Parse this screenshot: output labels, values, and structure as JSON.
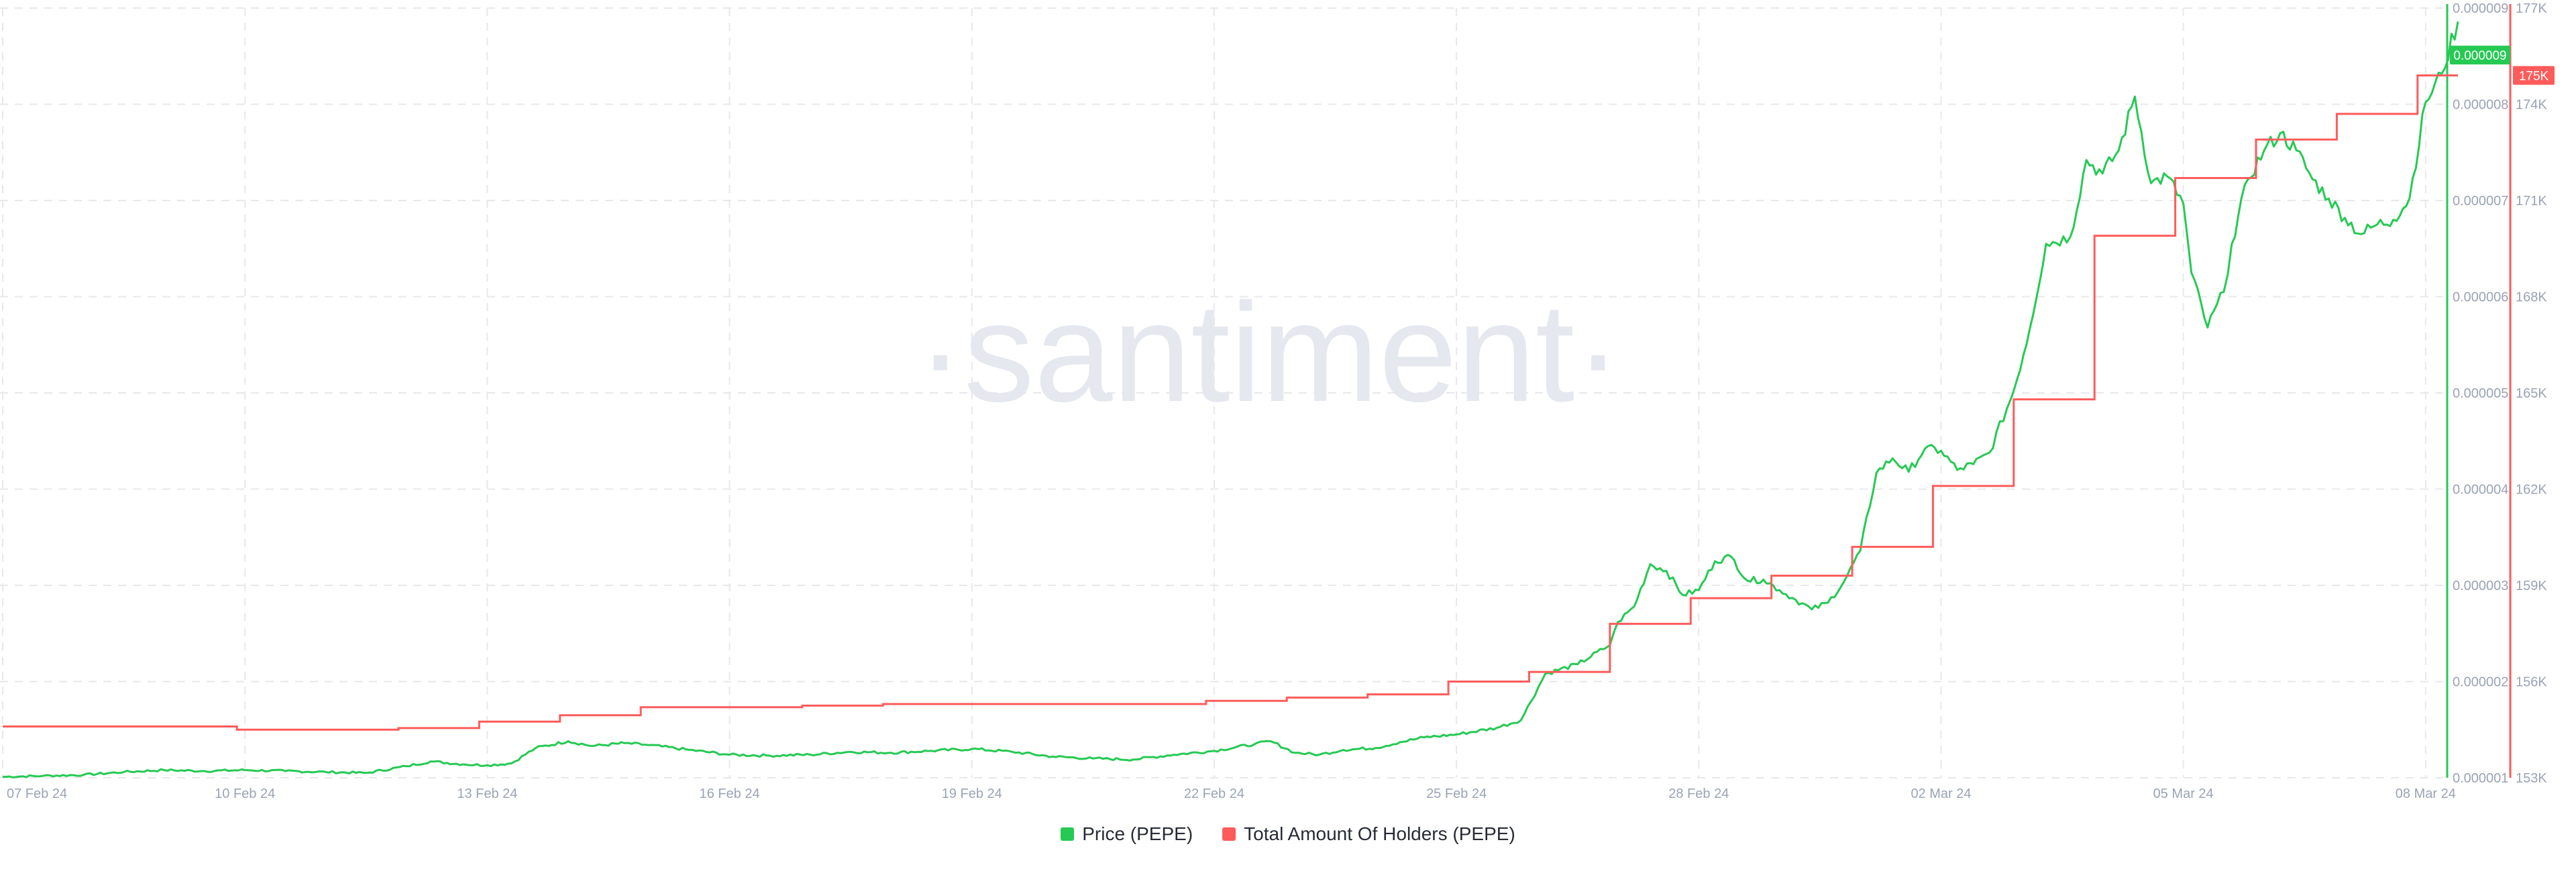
{
  "watermark": "·santiment·",
  "colors": {
    "price": "#26c953",
    "holders": "#ff5b5b",
    "grid": "#e8e8ec",
    "axis_text": "#9aa3b5",
    "watermark": "#e6e8f0"
  },
  "chart_data": {
    "type": "line",
    "title": "",
    "x_tick_labels": [
      "07 Feb 24",
      "10 Feb 24",
      "13 Feb 24",
      "16 Feb 24",
      "19 Feb 24",
      "22 Feb 24",
      "25 Feb 24",
      "28 Feb 24",
      "02 Mar 24",
      "05 Mar 24",
      "08 Mar 24"
    ],
    "x_tick_day_index": [
      0,
      3,
      6,
      9,
      12,
      15,
      18,
      21,
      24,
      27,
      30
    ],
    "x_range_days": [
      0,
      30.4
    ],
    "y_left": {
      "series": "Price (PEPE)",
      "range": [
        1e-06,
        9e-06
      ],
      "tick_labels": [
        "0.000001",
        "0.000002",
        "0.000003",
        "0.000004",
        "0.000005",
        "0.000006",
        "0.000007",
        "0.000008",
        "0.000009"
      ],
      "ticks": [
        1e-06,
        2e-06,
        3e-06,
        4e-06,
        5e-06,
        6e-06,
        7e-06,
        8e-06,
        9e-06
      ],
      "last_value_label": "0.000009"
    },
    "y_right": {
      "series": "Total Amount Of Holders (PEPE)",
      "range": [
        153000,
        177000
      ],
      "tick_labels": [
        "153K",
        "156K",
        "159K",
        "162K",
        "165K",
        "168K",
        "171K",
        "174K",
        "177K"
      ],
      "ticks": [
        153000,
        156000,
        159000,
        162000,
        165000,
        168000,
        171000,
        174000,
        177000
      ],
      "last_value_label": "175K"
    },
    "grid": true,
    "legend_position": "bottom-center",
    "series": [
      {
        "name": "Price (PEPE)",
        "axis": "left",
        "color": "#26c953",
        "points": [
          [
            0,
            1.01e-06
          ],
          [
            0.5,
            1.02e-06
          ],
          [
            1,
            1.03e-06
          ],
          [
            1.5,
            1.06e-06
          ],
          [
            2,
            1.08e-06
          ],
          [
            2.5,
            1.07e-06
          ],
          [
            3,
            1.08e-06
          ],
          [
            3.5,
            1.07e-06
          ],
          [
            4,
            1.06e-06
          ],
          [
            4.5,
            1.05e-06
          ],
          [
            5,
            1.12e-06
          ],
          [
            5.3,
            1.17e-06
          ],
          [
            5.7,
            1.14e-06
          ],
          [
            6,
            1.13e-06
          ],
          [
            6.3,
            1.15e-06
          ],
          [
            6.6,
            1.31e-06
          ],
          [
            7,
            1.38e-06
          ],
          [
            7.3,
            1.33e-06
          ],
          [
            7.7,
            1.36e-06
          ],
          [
            8,
            1.34e-06
          ],
          [
            8.5,
            1.29e-06
          ],
          [
            9,
            1.24e-06
          ],
          [
            9.5,
            1.23e-06
          ],
          [
            10,
            1.24e-06
          ],
          [
            10.5,
            1.27e-06
          ],
          [
            11,
            1.26e-06
          ],
          [
            11.5,
            1.28e-06
          ],
          [
            12,
            1.3e-06
          ],
          [
            12.5,
            1.27e-06
          ],
          [
            13,
            1.22e-06
          ],
          [
            13.5,
            1.2e-06
          ],
          [
            14,
            1.19e-06
          ],
          [
            14.5,
            1.24e-06
          ],
          [
            15,
            1.28e-06
          ],
          [
            15.5,
            1.35e-06
          ],
          [
            15.7,
            1.38e-06
          ],
          [
            16,
            1.26e-06
          ],
          [
            16.3,
            1.24e-06
          ],
          [
            16.6,
            1.29e-06
          ],
          [
            17,
            1.31e-06
          ],
          [
            17.3,
            1.37e-06
          ],
          [
            17.6,
            1.42e-06
          ],
          [
            18,
            1.45e-06
          ],
          [
            18.5,
            1.52e-06
          ],
          [
            18.8,
            1.6e-06
          ],
          [
            19.1,
            2.08e-06
          ],
          [
            19.5,
            2.18e-06
          ],
          [
            19.9,
            2.38e-06
          ],
          [
            20,
            2.62e-06
          ],
          [
            20.2,
            2.78e-06
          ],
          [
            20.4,
            3.22e-06
          ],
          [
            20.6,
            3.15e-06
          ],
          [
            20.8,
            2.9e-06
          ],
          [
            21,
            2.95e-06
          ],
          [
            21.2,
            3.25e-06
          ],
          [
            21.4,
            3.3e-06
          ],
          [
            21.6,
            3.05e-06
          ],
          [
            21.8,
            3.06e-06
          ],
          [
            22,
            2.95e-06
          ],
          [
            22.2,
            2.85e-06
          ],
          [
            22.4,
            2.75e-06
          ],
          [
            22.6,
            2.82e-06
          ],
          [
            22.8,
            3.04e-06
          ],
          [
            23,
            3.36e-06
          ],
          [
            23.2,
            4.17e-06
          ],
          [
            23.4,
            4.32e-06
          ],
          [
            23.6,
            4.18e-06
          ],
          [
            23.8,
            4.42e-06
          ],
          [
            24,
            4.4e-06
          ],
          [
            24.2,
            4.2e-06
          ],
          [
            24.4,
            4.26e-06
          ],
          [
            24.6,
            4.38e-06
          ],
          [
            24.9,
            5.02e-06
          ],
          [
            25.1,
            5.67e-06
          ],
          [
            25.3,
            6.55e-06
          ],
          [
            25.6,
            6.62e-06
          ],
          [
            25.8,
            7.42e-06
          ],
          [
            26,
            7.28e-06
          ],
          [
            26.2,
            7.52e-06
          ],
          [
            26.4,
            8.08e-06
          ],
          [
            26.6,
            7.18e-06
          ],
          [
            26.8,
            7.25e-06
          ],
          [
            27,
            6.97e-06
          ],
          [
            27.1,
            6.25e-06
          ],
          [
            27.3,
            5.68e-06
          ],
          [
            27.5,
            6.05e-06
          ],
          [
            27.6,
            6.55e-06
          ],
          [
            27.8,
            7.22e-06
          ],
          [
            28,
            7.52e-06
          ],
          [
            28.2,
            7.7e-06
          ],
          [
            28.4,
            7.52e-06
          ],
          [
            28.6,
            7.22e-06
          ],
          [
            28.8,
            7.02e-06
          ],
          [
            29,
            6.82e-06
          ],
          [
            29.2,
            6.65e-06
          ],
          [
            29.4,
            6.75e-06
          ],
          [
            29.6,
            6.8e-06
          ],
          [
            29.8,
            7.02e-06
          ],
          [
            30,
            8.02e-06
          ],
          [
            30.2,
            8.32e-06
          ],
          [
            30.4,
            8.86e-06
          ]
        ]
      },
      {
        "name": "Total Amount Of Holders (PEPE)",
        "axis": "right",
        "color": "#ff5b5b",
        "steps": [
          [
            0,
            154600
          ],
          [
            2.9,
            154500
          ],
          [
            4.9,
            154550
          ],
          [
            5.9,
            154750
          ],
          [
            6.9,
            154950
          ],
          [
            7.9,
            155200
          ],
          [
            9.9,
            155250
          ],
          [
            10.9,
            155300
          ],
          [
            14.9,
            155400
          ],
          [
            15.9,
            155500
          ],
          [
            16.9,
            155600
          ],
          [
            17.9,
            156000
          ],
          [
            18.9,
            156300
          ],
          [
            19.9,
            157800
          ],
          [
            20.9,
            158600
          ],
          [
            21.9,
            159300
          ],
          [
            22.9,
            160200
          ],
          [
            23.9,
            162100
          ],
          [
            24.9,
            164800
          ],
          [
            25.9,
            169900
          ],
          [
            26.9,
            171700
          ],
          [
            27.9,
            172900
          ],
          [
            28.9,
            173700
          ],
          [
            29.9,
            174900
          ],
          [
            30.4,
            174900
          ]
        ]
      }
    ]
  },
  "legend": {
    "price_label": "Price (PEPE)",
    "holders_label": "Total Amount Of Holders (PEPE)"
  }
}
